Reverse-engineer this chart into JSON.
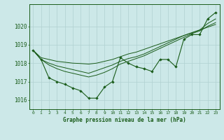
{
  "bg_color": "#cce8e8",
  "grid_color": "#b0d0d0",
  "line_color": "#1a5c1a",
  "marker_color": "#1a5c1a",
  "xlabel": "Graphe pression niveau de la mer (hPa)",
  "xlim": [
    -0.5,
    23.5
  ],
  "ylim": [
    1015.5,
    1021.2
  ],
  "yticks": [
    1016,
    1017,
    1018,
    1019,
    1020
  ],
  "xticks": [
    0,
    1,
    2,
    3,
    4,
    5,
    6,
    7,
    8,
    9,
    10,
    11,
    12,
    13,
    14,
    15,
    16,
    17,
    18,
    19,
    20,
    21,
    22,
    23
  ],
  "main_series": [
    1018.7,
    1018.2,
    1017.2,
    1017.0,
    1016.85,
    1016.65,
    1016.5,
    1016.1,
    1016.1,
    1016.7,
    1017.0,
    1018.3,
    1018.0,
    1017.8,
    1017.7,
    1017.55,
    1018.2,
    1018.2,
    1017.8,
    1019.3,
    1019.55,
    1019.55,
    1020.4,
    1020.75
  ],
  "line_trend1": [
    1018.7,
    1018.3,
    1018.2,
    1018.1,
    1018.05,
    1018.0,
    1017.98,
    1017.95,
    1018.0,
    1018.1,
    1018.2,
    1018.35,
    1018.5,
    1018.6,
    1018.75,
    1018.9,
    1019.05,
    1019.2,
    1019.35,
    1019.5,
    1019.65,
    1019.8,
    1019.95,
    1020.1
  ],
  "line_trend2": [
    1018.7,
    1018.2,
    1017.9,
    1017.7,
    1017.55,
    1017.45,
    1017.35,
    1017.25,
    1017.35,
    1017.5,
    1017.7,
    1017.95,
    1018.1,
    1018.25,
    1018.4,
    1018.6,
    1018.8,
    1019.0,
    1019.2,
    1019.4,
    1019.6,
    1019.75,
    1020.0,
    1020.2
  ],
  "line_trend3": [
    1018.7,
    1018.2,
    1018.0,
    1017.85,
    1017.75,
    1017.65,
    1017.55,
    1017.45,
    1017.6,
    1017.75,
    1017.9,
    1018.1,
    1018.25,
    1018.35,
    1018.5,
    1018.7,
    1018.9,
    1019.1,
    1019.3,
    1019.5,
    1019.65,
    1019.8,
    1020.15,
    1020.4
  ]
}
